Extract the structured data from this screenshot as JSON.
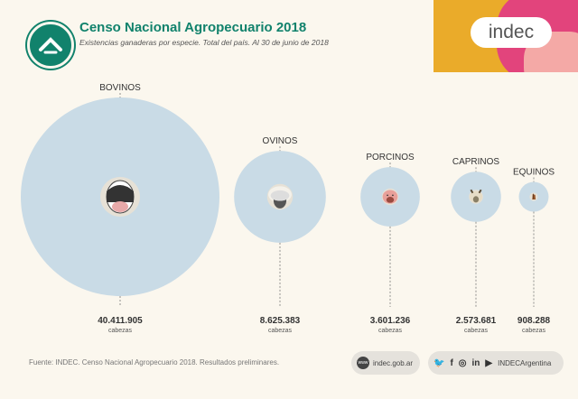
{
  "header": {
    "title": "Censo Nacional Agropecuario 2018",
    "subtitle": "Existencias ganaderas por especie. Total del país. Al 30 de junio de 2018",
    "brand": "indec"
  },
  "chart_data": {
    "type": "bubble",
    "title": "Censo Nacional Agropecuario 2018",
    "subtitle": "Existencias ganaderas por especie. Total del país. Al 30 de junio de 2018",
    "unit": "cabezas",
    "categories": [
      "BOVINOS",
      "OVINOS",
      "PORCINOS",
      "CAPRINOS",
      "EQUINOS"
    ],
    "values": [
      40411905,
      8625383,
      3601236,
      2573681,
      908288
    ],
    "value_labels": [
      "40.411.905",
      "8.625.383",
      "3.601.236",
      "2.573.681",
      "908.288"
    ],
    "icons": [
      "cow-icon",
      "sheep-icon",
      "pig-icon",
      "goat-icon",
      "horse-icon"
    ]
  },
  "colors": {
    "bubble": "#c9dbe6",
    "accent": "#11826c",
    "background": "#fbf7ee"
  },
  "footer": {
    "source": "Fuente: INDEC. Censo Nacional Agropecuario 2018. Resultados preliminares.",
    "website": "indec.gob.ar",
    "social_handle": "INDECArgentina",
    "www_badge": "www"
  }
}
